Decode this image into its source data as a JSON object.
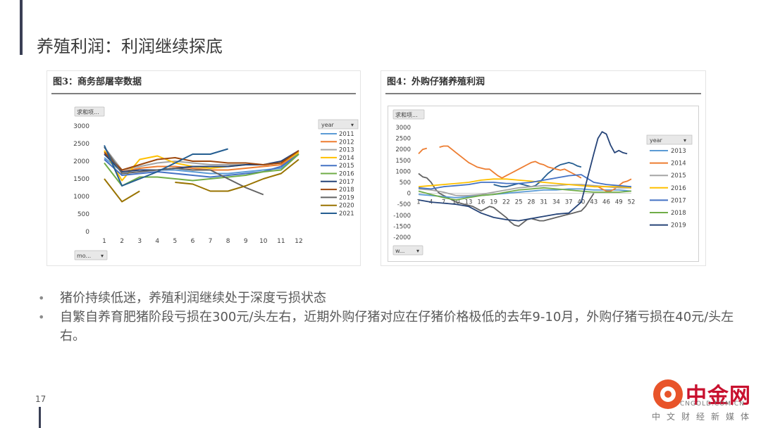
{
  "page": {
    "title": "养殖利润：利润继续探底",
    "page_number": "17"
  },
  "bullets": [
    "猪价持续低迷，养殖利润继续处于深度亏损状态",
    "自繁自养育肥猪阶段亏损在300元/头左右，近期外购仔猪对应在仔猪价格极低的去年9-10月，外购仔猪亏损在40元/头左右。"
  ],
  "logo": {
    "name": "中金网",
    "url": "CNGOLD.COM.CN",
    "sub": "中文财经新媒体"
  },
  "chart_data": [
    {
      "type": "line",
      "title": "图3：商务部屠宰数据",
      "value_field": "求和项...",
      "axis_field": "mo...",
      "legend_title": "year",
      "legend_position": "right",
      "x": [
        1,
        2,
        3,
        4,
        5,
        6,
        7,
        8,
        9,
        10,
        11,
        12
      ],
      "ylim": [
        0,
        3000
      ],
      "yticks": [
        0,
        500,
        1000,
        1500,
        2000,
        2500,
        3000
      ],
      "series": [
        {
          "name": "2011",
          "color": "#5b9bd5",
          "values": [
            2100,
            1700,
            1750,
            1750,
            1750,
            1700,
            1650,
            1650,
            1700,
            1750,
            1800,
            2200
          ]
        },
        {
          "name": "2012",
          "color": "#ed7d31",
          "values": [
            2300,
            1700,
            1800,
            1850,
            1850,
            1800,
            1750,
            1750,
            1800,
            1850,
            1900,
            2250
          ]
        },
        {
          "name": "2013",
          "color": "#a5a5a5",
          "values": [
            2400,
            1750,
            1850,
            1950,
            2000,
            1950,
            1900,
            1900,
            1900,
            1900,
            1950,
            2300
          ]
        },
        {
          "name": "2014",
          "color": "#ffc000",
          "values": [
            2300,
            1450,
            2050,
            2150,
            1950,
            1850,
            1800,
            1850,
            1900,
            1900,
            1950,
            2250
          ]
        },
        {
          "name": "2015",
          "color": "#4472c4",
          "values": [
            2050,
            1600,
            1650,
            1700,
            1650,
            1600,
            1550,
            1600,
            1650,
            1700,
            1850,
            2200
          ]
        },
        {
          "name": "2016",
          "color": "#70ad47",
          "values": [
            1950,
            1300,
            1550,
            1550,
            1500,
            1450,
            1500,
            1550,
            1600,
            1700,
            1750,
            2200
          ]
        },
        {
          "name": "2017",
          "color": "#264478",
          "values": [
            2200,
            1700,
            1750,
            1750,
            1800,
            1850,
            1850,
            1850,
            1900,
            1900,
            2000,
            2300
          ]
        },
        {
          "name": "2018",
          "color": "#9e480e",
          "values": [
            2250,
            1750,
            1900,
            2050,
            2100,
            2000,
            2000,
            1950,
            1950,
            1900,
            1950,
            2300
          ]
        },
        {
          "name": "2019",
          "color": "#636363",
          "values": [
            2400,
            1650,
            1700,
            1750,
            1800,
            1750,
            1750,
            1500,
            1250,
            1050,
            null,
            null
          ]
        },
        {
          "name": "2020",
          "color": "#997300",
          "values": [
            1500,
            850,
            1150,
            null,
            1400,
            1350,
            1150,
            1150,
            1300,
            1500,
            1650,
            2050
          ]
        },
        {
          "name": "2021",
          "color": "#255e91",
          "values": [
            2450,
            1300,
            1500,
            1700,
            1950,
            2200,
            2200,
            2350,
            null,
            null,
            null,
            null
          ]
        }
      ]
    },
    {
      "type": "line",
      "title": "图4：外购仔猪养殖利润",
      "value_field": "求和项...",
      "axis_field": "w...",
      "legend_title": "year",
      "legend_position": "right",
      "xticks": [
        1,
        4,
        7,
        10,
        13,
        16,
        19,
        22,
        25,
        28,
        31,
        34,
        37,
        40,
        43,
        46,
        49,
        52
      ],
      "xlim": [
        1,
        52
      ],
      "ylim": [
        -2000,
        3000
      ],
      "yticks": [
        -2000,
        -1500,
        -1000,
        -500,
        0,
        500,
        1000,
        1500,
        2000,
        2500,
        3000
      ],
      "series": [
        {
          "name": "2013",
          "color": "#5b9bd5",
          "x": [
            1,
            4,
            7,
            10,
            13,
            16,
            19,
            22,
            25,
            28,
            31,
            34,
            37,
            40,
            43,
            46,
            49,
            52
          ],
          "values": [
            -50,
            -100,
            -150,
            -200,
            -150,
            -100,
            -50,
            0,
            50,
            100,
            150,
            150,
            200,
            200,
            150,
            150,
            150,
            100
          ]
        },
        {
          "name": "2014",
          "color": "#ed7d31",
          "x": [
            1,
            2,
            3,
            4,
            5,
            6,
            7,
            8,
            9,
            10,
            11,
            12,
            13,
            14,
            15,
            16,
            17,
            18,
            19,
            20,
            21,
            22,
            23,
            24,
            25,
            26,
            27,
            28,
            29,
            30,
            31,
            32,
            33,
            34,
            35,
            36,
            37,
            38,
            39,
            40,
            41,
            42,
            43,
            44,
            45,
            46,
            47,
            48,
            49,
            50,
            51,
            52
          ],
          "values": [
            1800,
            2000,
            2050,
            null,
            null,
            2100,
            2150,
            2150,
            2000,
            1850,
            1700,
            1550,
            1400,
            1300,
            1200,
            1150,
            1100,
            1100,
            950,
            800,
            700,
            800,
            900,
            1000,
            1100,
            1200,
            1300,
            1400,
            1450,
            1350,
            1300,
            1200,
            1150,
            1100,
            1050,
            1100,
            1000,
            900,
            800,
            700,
            null,
            null,
            300,
            300,
            200,
            100,
            100,
            200,
            350,
            500,
            550,
            650
          ]
        },
        {
          "name": "2015",
          "color": "#a5a5a5",
          "x": [
            1,
            4,
            7,
            10,
            13,
            16,
            19,
            22,
            25,
            28,
            31,
            34,
            37,
            40,
            43,
            46,
            49,
            52
          ],
          "values": [
            200,
            150,
            50,
            -100,
            -100,
            -50,
            50,
            150,
            250,
            300,
            350,
            350,
            400,
            400,
            350,
            300,
            250,
            250
          ]
        },
        {
          "name": "2016",
          "color": "#ffc000",
          "x": [
            1,
            4,
            7,
            10,
            13,
            16,
            19,
            22,
            25,
            28,
            31,
            34,
            37,
            40,
            43,
            46,
            49,
            52
          ],
          "values": [
            300,
            350,
            400,
            450,
            500,
            600,
            650,
            650,
            600,
            550,
            500,
            450,
            400,
            350,
            300,
            300,
            300,
            250
          ]
        },
        {
          "name": "2017",
          "color": "#4472c4",
          "x": [
            1,
            4,
            7,
            10,
            13,
            16,
            19,
            22,
            25,
            28,
            31,
            34,
            37,
            40,
            43,
            46,
            49,
            52
          ],
          "values": [
            250,
            200,
            300,
            350,
            400,
            500,
            500,
            450,
            450,
            500,
            600,
            700,
            800,
            850,
            500,
            400,
            350,
            300
          ]
        },
        {
          "name": "2018",
          "color": "#70ad47",
          "x": [
            1,
            4,
            7,
            10,
            13,
            16,
            19,
            22,
            25,
            28,
            31,
            34,
            37,
            40,
            43,
            46,
            49,
            52
          ],
          "values": [
            100,
            -50,
            -200,
            -300,
            -200,
            -100,
            -50,
            50,
            150,
            200,
            250,
            200,
            150,
            100,
            50,
            50,
            50,
            100
          ]
        },
        {
          "name": "2019",
          "color": "#264478",
          "x": [
            1,
            4,
            7,
            10,
            13,
            16,
            19,
            22,
            25,
            28,
            31,
            34,
            37,
            40,
            43,
            44,
            45,
            46,
            47,
            48,
            49,
            50,
            51,
            52
          ],
          "values": [
            -300,
            -400,
            -450,
            -500,
            -600,
            -900,
            -1100,
            -1200,
            -1250,
            -1150,
            -1050,
            -950,
            -900,
            -400,
            1800,
            2500,
            2800,
            2700,
            2200,
            1850,
            1950,
            1850,
            1800,
            null
          ]
        }
      ],
      "extra_lines": [
        {
          "color": "#636363",
          "x": [
            1,
            2,
            3,
            4,
            5,
            6,
            7,
            8,
            9,
            10,
            11,
            12,
            13,
            14,
            15,
            16,
            17,
            18,
            19,
            20,
            21,
            22,
            23,
            24,
            25,
            26,
            27,
            28,
            29,
            30,
            31,
            32,
            33,
            34,
            35,
            36,
            37,
            38,
            39,
            40,
            41,
            42,
            43
          ],
          "values": [
            900,
            750,
            700,
            500,
            200,
            0,
            -100,
            -200,
            -300,
            -400,
            -450,
            -500,
            -550,
            -600,
            -700,
            -800,
            -700,
            -600,
            -650,
            -800,
            -950,
            -1100,
            -1300,
            -1450,
            -1500,
            -1350,
            -1200,
            -1150,
            -1200,
            -1250,
            -1250,
            -1200,
            -1150,
            -1100,
            -1050,
            -1000,
            -950,
            -900,
            -850,
            -800,
            -600,
            -300,
            0
          ]
        },
        {
          "color": "#255e91",
          "x": [
            19,
            20,
            21,
            22,
            23,
            24,
            25,
            26,
            27,
            28,
            29,
            30,
            31,
            32,
            33,
            34,
            35,
            36,
            37,
            38,
            39,
            40
          ],
          "values": [
            400,
            350,
            300,
            300,
            350,
            400,
            450,
            400,
            350,
            300,
            350,
            500,
            700,
            900,
            1050,
            1200,
            1300,
            1350,
            1400,
            1350,
            1250,
            1200
          ]
        }
      ]
    }
  ]
}
